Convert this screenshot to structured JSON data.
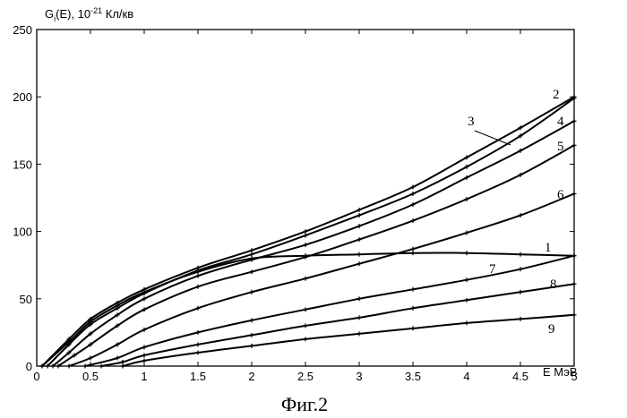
{
  "chart_data": {
    "type": "line",
    "ylabel_prefix": "G",
    "ylabel_sub": "i",
    "ylabel_mid": "(E), 10",
    "ylabel_sup": "-21",
    "ylabel_suffix": " Кл/кв",
    "xlabel": "E МэВ",
    "caption": "Фиг.2",
    "xlim": [
      0,
      5
    ],
    "ylim": [
      0,
      250
    ],
    "xticks": [
      "0",
      "0.5",
      "1",
      "1.5",
      "2",
      "2.5",
      "3",
      "3.5",
      "4",
      "4.5",
      "5"
    ],
    "yticks": [
      "0",
      "50",
      "100",
      "150",
      "200",
      "250"
    ],
    "grid": false,
    "series": [
      {
        "name": "1",
        "x": [
          0.05,
          0.3,
          0.5,
          0.75,
          1.0,
          1.5,
          2.0,
          2.5,
          3.0,
          3.5,
          4.0,
          4.5,
          5.0
        ],
        "y": [
          0,
          18,
          33,
          45,
          55,
          70,
          80,
          82,
          83,
          84,
          84,
          83,
          82
        ]
      },
      {
        "name": "2",
        "x": [
          0.05,
          0.3,
          0.5,
          0.75,
          1.0,
          1.5,
          2.0,
          2.5,
          3.0,
          3.5,
          4.0,
          4.5,
          5.0
        ],
        "y": [
          0,
          20,
          35,
          47,
          57,
          73,
          86,
          100,
          116,
          133,
          155,
          177,
          200
        ]
      },
      {
        "name": "3",
        "x": [
          0.1,
          0.3,
          0.5,
          0.75,
          1.0,
          1.5,
          2.0,
          2.5,
          3.0,
          3.5,
          4.0,
          4.5,
          5.0
        ],
        "y": [
          0,
          16,
          31,
          43,
          54,
          71,
          83,
          97,
          112,
          128,
          148,
          171,
          199
        ]
      },
      {
        "name": "4",
        "x": [
          0.15,
          0.3,
          0.5,
          0.75,
          1.0,
          1.5,
          2.0,
          2.5,
          3.0,
          3.5,
          4.0,
          4.5,
          5.0
        ],
        "y": [
          0,
          10,
          24,
          38,
          50,
          67,
          79,
          90,
          104,
          120,
          140,
          160,
          182
        ]
      },
      {
        "name": "5",
        "x": [
          0.2,
          0.35,
          0.5,
          0.75,
          1.0,
          1.5,
          2.0,
          2.5,
          3.0,
          3.5,
          4.0,
          4.5,
          5.0
        ],
        "y": [
          0,
          8,
          16,
          30,
          42,
          59,
          70,
          81,
          94,
          108,
          124,
          142,
          164
        ]
      },
      {
        "name": "6",
        "x": [
          0.3,
          0.5,
          0.75,
          1.0,
          1.5,
          2.0,
          2.5,
          3.0,
          3.5,
          4.0,
          4.5,
          5.0
        ],
        "y": [
          0,
          6,
          16,
          27,
          43,
          55,
          65,
          76,
          87,
          99,
          112,
          128
        ]
      },
      {
        "name": "7",
        "x": [
          0.45,
          0.75,
          1.0,
          1.5,
          2.0,
          2.5,
          3.0,
          3.5,
          4.0,
          4.5,
          5.0
        ],
        "y": [
          0,
          6,
          14,
          25,
          34,
          42,
          50,
          57,
          64,
          72,
          82
        ]
      },
      {
        "name": "8",
        "x": [
          0.6,
          0.8,
          1.0,
          1.5,
          2.0,
          2.5,
          3.0,
          3.5,
          4.0,
          4.5,
          5.0
        ],
        "y": [
          0,
          3,
          8,
          16,
          23,
          30,
          36,
          43,
          49,
          55,
          61
        ]
      },
      {
        "name": "9",
        "x": [
          0.8,
          1.0,
          1.5,
          2.0,
          2.5,
          3.0,
          3.5,
          4.0,
          4.5,
          5.0
        ],
        "y": [
          0,
          4,
          10,
          15,
          20,
          24,
          28,
          32,
          35,
          38
        ]
      }
    ]
  }
}
